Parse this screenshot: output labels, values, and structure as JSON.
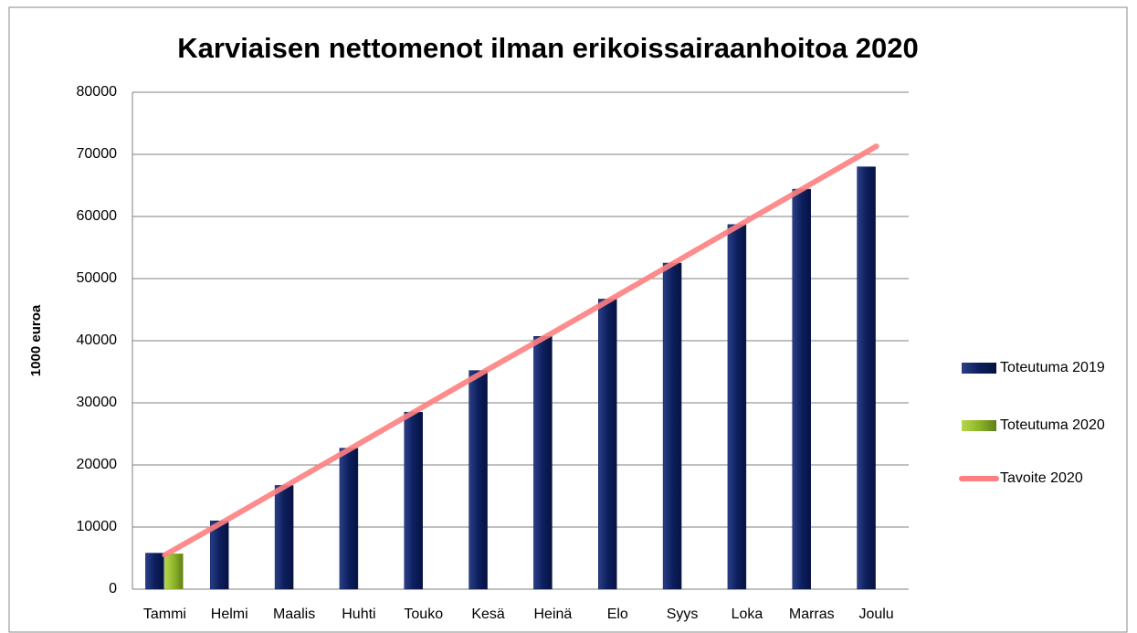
{
  "chart_data": {
    "type": "bar",
    "title": "Karviaisen nettomenot ilman erikoissairaanhoitoa 2020",
    "y_label": "1000 euroa",
    "categories": [
      "Tammi",
      "Helmi",
      "Maalis",
      "Huhti",
      "Touko",
      "Kesä",
      "Heinä",
      "Elo",
      "Syys",
      "Loka",
      "Marras",
      "Joulu"
    ],
    "series": [
      {
        "name": "Toteutuma 2019",
        "color": "#0d1f5e",
        "type": "bar",
        "values": [
          5800,
          11000,
          16700,
          22700,
          28500,
          35200,
          40700,
          46700,
          52500,
          58700,
          64400,
          68000
        ]
      },
      {
        "name": "Toteutuma 2020",
        "color": "#8db52a",
        "type": "bar",
        "values": [
          5700,
          null,
          null,
          null,
          null,
          null,
          null,
          null,
          null,
          null,
          null,
          null
        ]
      },
      {
        "name": "Tavoite 2020",
        "color": "#ff7f7f",
        "type": "line",
        "values": [
          5500,
          11400,
          17400,
          23400,
          29400,
          35400,
          41300,
          47300,
          53300,
          59300,
          65300,
          71300
        ]
      }
    ],
    "ylim": [
      0,
      80000
    ],
    "yticks": [
      0,
      10000,
      20000,
      30000,
      40000,
      50000,
      60000,
      70000,
      80000
    ],
    "grid": true,
    "legend": "right"
  }
}
